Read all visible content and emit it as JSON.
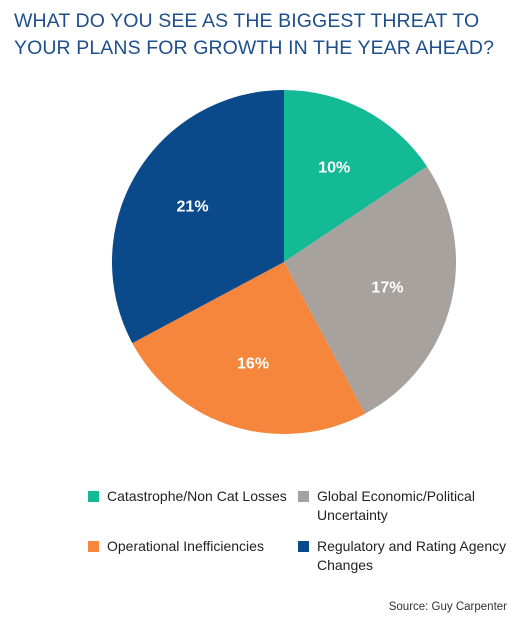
{
  "chart_data": {
    "type": "pie",
    "title": "WHAT DO YOU SEE AS THE BIGGEST THREAT TO YOUR PLANS FOR GROWTH IN THE YEAR AHEAD?",
    "source": "Source: Guy Carpenter",
    "legend_position": "bottom",
    "slices": [
      {
        "name": "Catastrophe/Non Cat Losses",
        "value": 10,
        "label": "10%",
        "color": "#14b995"
      },
      {
        "name": "Global Economic/Political Uncertainty",
        "value": 17,
        "label": "17%",
        "color": "#a8a29e"
      },
      {
        "name": "Operational Inefficiencies",
        "value": 16,
        "label": "16%",
        "color": "#f5863b"
      },
      {
        "name": "Regulatory and Rating Agency Changes",
        "value": 21,
        "label": "21%",
        "color": "#0b4a8a"
      }
    ]
  }
}
